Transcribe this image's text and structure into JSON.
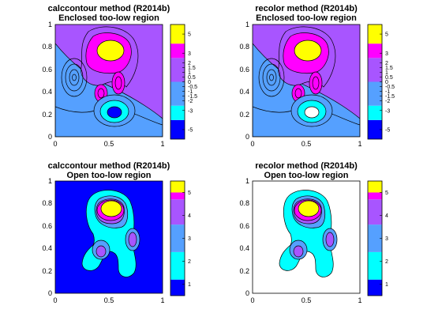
{
  "colors": {
    "palette": [
      "#0000ff",
      "#00ffff",
      "#55a0ff",
      "#a855ff",
      "#ff00ff",
      "#ffff00"
    ],
    "no_fill": "#ffffff",
    "outline": "#000000"
  },
  "chart_data": [
    {
      "type": "contour",
      "title": "calccontour method (R2014b)",
      "subtitle": "Enclosed too-low region",
      "x_ticks": [
        "0",
        "0.5",
        "1"
      ],
      "y_ticks": [
        "0",
        "0.2",
        "0.4",
        "0.6",
        "0.8",
        "1"
      ],
      "xlim": [
        0,
        1
      ],
      "ylim": [
        0,
        1
      ],
      "low_region_fill": "#0000ff",
      "colorbar": {
        "limits": [
          -6,
          6
        ],
        "bands": [
          {
            "from": -6,
            "to": -4,
            "color": "#0000ff"
          },
          {
            "from": -4,
            "to": -2.5,
            "color": "#00ffff"
          },
          {
            "from": -2.5,
            "to": 0,
            "color": "#55a0ff"
          },
          {
            "from": 0,
            "to": 2.5,
            "color": "#a855ff"
          },
          {
            "from": 2.5,
            "to": 4,
            "color": "#ff00ff"
          },
          {
            "from": 4,
            "to": 6,
            "color": "#ffff00"
          }
        ],
        "tick_values": [
          5,
          3,
          2,
          1.5,
          1,
          0.5,
          0,
          -0.5,
          -1,
          -1.5,
          -2,
          -3,
          -5
        ],
        "tick_labels": [
          "5",
          "3",
          "2",
          "1.5",
          "1",
          "0.5",
          "0",
          "-0.5",
          "-1",
          "-1.5",
          "-2",
          "-3",
          "-5"
        ]
      }
    },
    {
      "type": "contour",
      "title": "recolor method (R2014b)",
      "subtitle": "Enclosed too-low region",
      "x_ticks": [
        "0",
        "0.5",
        "1"
      ],
      "y_ticks": [
        "0",
        "0.2",
        "0.4",
        "0.6",
        "0.8",
        "1"
      ],
      "xlim": [
        0,
        1
      ],
      "ylim": [
        0,
        1
      ],
      "low_region_fill": "#ffffff",
      "colorbar": {
        "limits": [
          -6,
          6
        ],
        "bands": [
          {
            "from": -6,
            "to": -4,
            "color": "#0000ff"
          },
          {
            "from": -4,
            "to": -2.5,
            "color": "#00ffff"
          },
          {
            "from": -2.5,
            "to": 0,
            "color": "#55a0ff"
          },
          {
            "from": 0,
            "to": 2.5,
            "color": "#a855ff"
          },
          {
            "from": 2.5,
            "to": 4,
            "color": "#ff00ff"
          },
          {
            "from": 4,
            "to": 6,
            "color": "#ffff00"
          }
        ],
        "tick_values": [
          5,
          3,
          2,
          1.5,
          1,
          0.5,
          0,
          -0.5,
          -1,
          -1.5,
          -2,
          -3,
          -5
        ],
        "tick_labels": [
          "5",
          "3",
          "2",
          "1.5",
          "1",
          "0.5",
          "0",
          "-0.5",
          "-1",
          "-1.5",
          "-2",
          "-3",
          "-5"
        ]
      }
    },
    {
      "type": "contour",
      "title": "calccontour method (R2014b)",
      "subtitle": "Open too-low region",
      "x_ticks": [
        "0",
        "0.5",
        "1"
      ],
      "y_ticks": [
        "0",
        "0.2",
        "0.4",
        "0.6",
        "0.8",
        "1"
      ],
      "xlim": [
        0,
        1
      ],
      "ylim": [
        0,
        1
      ],
      "background_fill": "#0000ff",
      "colorbar": {
        "limits": [
          0.5,
          5.5
        ],
        "bands": [
          {
            "from": 0.5,
            "to": 1.2,
            "color": "#0000ff"
          },
          {
            "from": 1.2,
            "to": 2.4,
            "color": "#00ffff"
          },
          {
            "from": 2.4,
            "to": 3.6,
            "color": "#55a0ff"
          },
          {
            "from": 3.6,
            "to": 4.7,
            "color": "#a855ff"
          },
          {
            "from": 4.7,
            "to": 5.0,
            "color": "#ff00ff"
          },
          {
            "from": 5.0,
            "to": 5.5,
            "color": "#ffff00"
          }
        ],
        "tick_values": [
          5,
          4,
          3,
          2,
          1
        ],
        "tick_labels": [
          "5",
          "4",
          "3",
          "2",
          "1"
        ]
      }
    },
    {
      "type": "contour",
      "title": "recolor method (R2014b)",
      "subtitle": "Open too-low region",
      "x_ticks": [
        "0",
        "0.5",
        "1"
      ],
      "y_ticks": [
        "0",
        "0.2",
        "0.4",
        "0.6",
        "0.8",
        "1"
      ],
      "xlim": [
        0,
        1
      ],
      "ylim": [
        0,
        1
      ],
      "background_fill": "#ffffff",
      "colorbar": {
        "limits": [
          0.5,
          5.5
        ],
        "bands": [
          {
            "from": 0.5,
            "to": 1.2,
            "color": "#0000ff"
          },
          {
            "from": 1.2,
            "to": 2.4,
            "color": "#00ffff"
          },
          {
            "from": 2.4,
            "to": 3.6,
            "color": "#55a0ff"
          },
          {
            "from": 3.6,
            "to": 4.7,
            "color": "#a855ff"
          },
          {
            "from": 4.7,
            "to": 5.0,
            "color": "#ff00ff"
          },
          {
            "from": 5.0,
            "to": 5.5,
            "color": "#ffff00"
          }
        ],
        "tick_values": [
          5,
          4,
          3,
          2,
          1
        ],
        "tick_labels": [
          "5",
          "4",
          "3",
          "2",
          "1"
        ]
      }
    }
  ]
}
